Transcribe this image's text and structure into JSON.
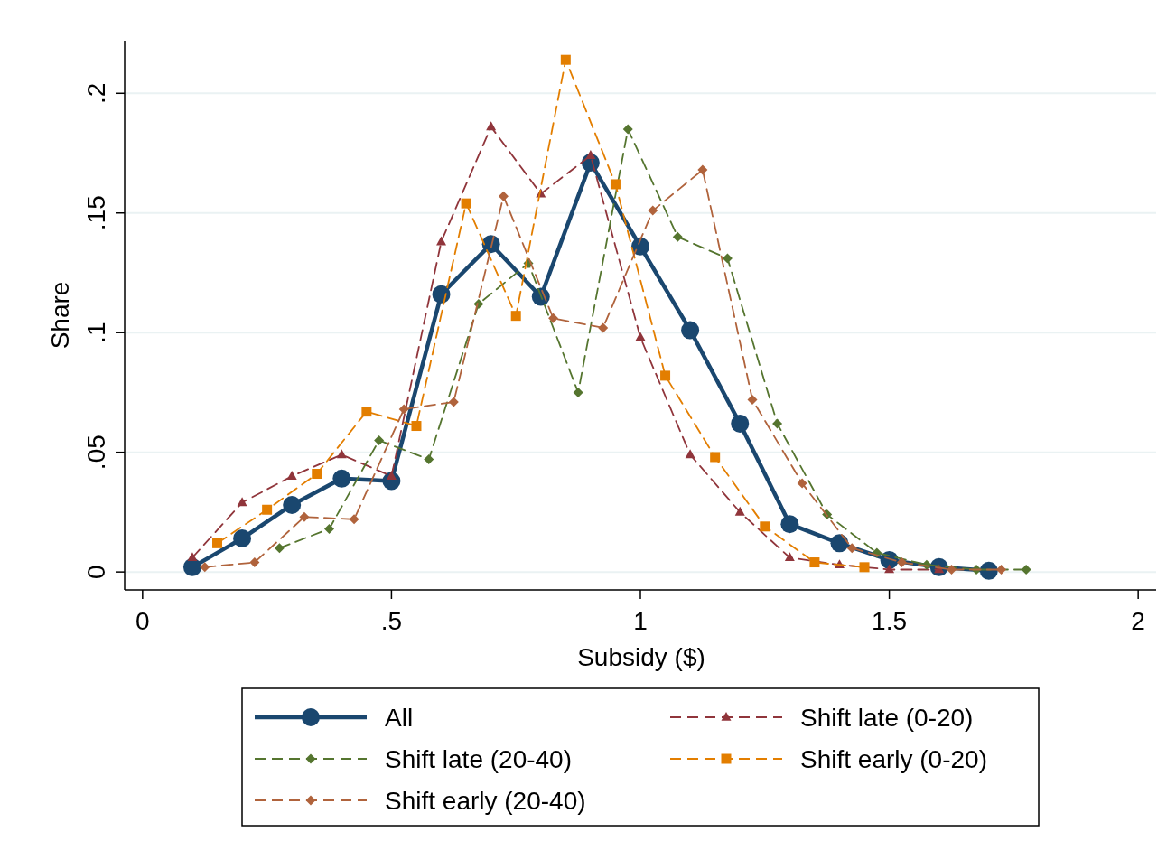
{
  "chart_data": {
    "type": "line",
    "xlabel": "Subsidy ($)",
    "ylabel": "Share",
    "xlim": [
      -0.036,
      2.036
    ],
    "xticks": [
      0,
      {
        "value": 0.5,
        "label": ".5"
      },
      1,
      1.5,
      2
    ],
    "ylim": [
      -0.0075,
      0.222
    ],
    "yticks": [
      0,
      {
        "value": 0.05,
        "label": ".05"
      },
      {
        "value": 0.1,
        "label": ".1"
      },
      {
        "value": 0.15,
        "label": ".15"
      },
      {
        "value": 0.2,
        "label": ".2"
      }
    ],
    "grid": "y",
    "legend": "bottom",
    "series": [
      {
        "name": "All",
        "color": "#1a476f",
        "marker": "circle",
        "line_style": "solid",
        "x": [
          0.1,
          0.2,
          0.3,
          0.4,
          0.5,
          0.6,
          0.7,
          0.8,
          0.9,
          1.0,
          1.1,
          1.2,
          1.3,
          1.4,
          1.5,
          1.6,
          1.7
        ],
        "values": [
          0.002,
          0.014,
          0.028,
          0.039,
          0.038,
          0.116,
          0.137,
          0.115,
          0.171,
          0.136,
          0.101,
          0.062,
          0.02,
          0.012,
          0.005,
          0.002,
          0.0005
        ]
      },
      {
        "name": "Shift late (0-20)",
        "color": "#90353b",
        "marker": "triangle",
        "line_style": "dashed",
        "x": [
          0.1,
          0.2,
          0.3,
          0.4,
          0.5,
          0.6,
          0.7,
          0.8,
          0.9,
          1.0,
          1.1,
          1.2,
          1.3,
          1.4,
          1.5,
          1.6
        ],
        "values": [
          0.006,
          0.029,
          0.04,
          0.049,
          0.04,
          0.138,
          0.186,
          0.158,
          0.174,
          0.098,
          0.049,
          0.025,
          0.006,
          0.003,
          0.001,
          0.001
        ]
      },
      {
        "name": "Shift late (20-40)",
        "color": "#55752f",
        "marker": "diamond",
        "line_style": "dashed",
        "x": [
          0.275,
          0.375,
          0.475,
          0.575,
          0.675,
          0.775,
          0.875,
          0.975,
          1.075,
          1.175,
          1.275,
          1.375,
          1.475,
          1.575,
          1.675,
          1.775
        ],
        "values": [
          0.01,
          0.018,
          0.055,
          0.047,
          0.112,
          0.129,
          0.075,
          0.185,
          0.14,
          0.131,
          0.062,
          0.024,
          0.008,
          0.003,
          0.001,
          0.001
        ]
      },
      {
        "name": "Shift early (0-20)",
        "color": "#e37e00",
        "marker": "square",
        "line_style": "dashed",
        "x": [
          0.15,
          0.25,
          0.35,
          0.45,
          0.55,
          0.65,
          0.75,
          0.85,
          0.95,
          1.05,
          1.15,
          1.25,
          1.35,
          1.45
        ],
        "values": [
          0.012,
          0.026,
          0.041,
          0.067,
          0.061,
          0.154,
          0.107,
          0.214,
          0.162,
          0.082,
          0.048,
          0.019,
          0.004,
          0.002
        ]
      },
      {
        "name": "Shift early (20-40)",
        "color": "#b0633c",
        "marker": "diamond",
        "line_style": "dashed",
        "x": [
          0.125,
          0.225,
          0.325,
          0.425,
          0.525,
          0.625,
          0.725,
          0.825,
          0.925,
          1.025,
          1.125,
          1.225,
          1.325,
          1.425,
          1.525,
          1.625,
          1.725
        ],
        "values": [
          0.002,
          0.004,
          0.023,
          0.022,
          0.068,
          0.071,
          0.157,
          0.106,
          0.102,
          0.151,
          0.168,
          0.072,
          0.037,
          0.01,
          0.004,
          0.001,
          0.001
        ]
      }
    ]
  }
}
